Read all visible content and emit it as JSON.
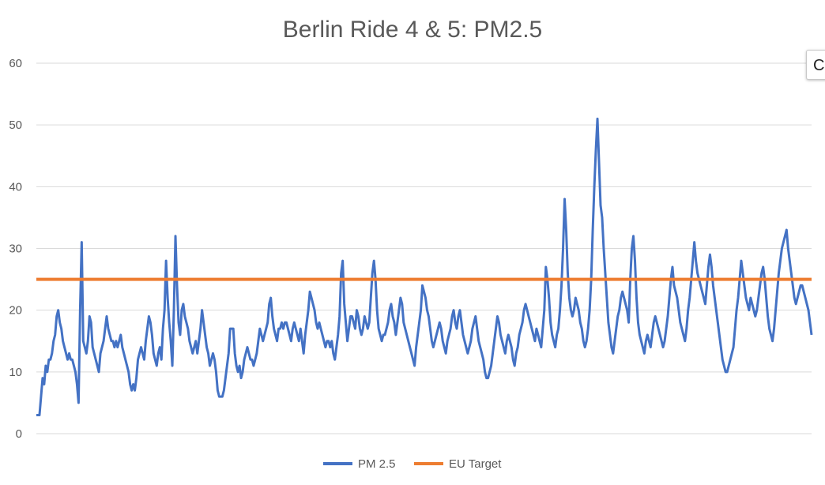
{
  "chart_data": {
    "type": "line",
    "title": "Berlin Ride 4 & 5: PM2.5",
    "ylim": [
      0,
      60
    ],
    "yticks": [
      "0",
      "10",
      "20",
      "30",
      "40",
      "50",
      "60"
    ],
    "grid": true,
    "legend_position": "bottom",
    "series": [
      {
        "name": "PM 2.5",
        "color": "#4472C4",
        "values": [
          3,
          3,
          3,
          6,
          9,
          8,
          11,
          10,
          12,
          12,
          13,
          15,
          16,
          19,
          20,
          18,
          17,
          15,
          14,
          13,
          12,
          13,
          12,
          12,
          11,
          10,
          8,
          5,
          20,
          31,
          15,
          14,
          13,
          15,
          19,
          18,
          14,
          13,
          12,
          11,
          10,
          13,
          14,
          15,
          17,
          19,
          17,
          16,
          15,
          15,
          14,
          15,
          14,
          15,
          16,
          14,
          13,
          12,
          11,
          10,
          8,
          7,
          8,
          7,
          9,
          12,
          13,
          14,
          13,
          12,
          15,
          17,
          19,
          18,
          16,
          13,
          12,
          11,
          13,
          14,
          12,
          17,
          20,
          28,
          22,
          18,
          15,
          11,
          20,
          32,
          24,
          18,
          16,
          20,
          21,
          19,
          18,
          17,
          15,
          14,
          13,
          14,
          15,
          13,
          15,
          17,
          20,
          18,
          16,
          14,
          13,
          11,
          12,
          13,
          12,
          10,
          7,
          6,
          6,
          6,
          7,
          9,
          11,
          13,
          17,
          17,
          17,
          13,
          11,
          10,
          11,
          9,
          10,
          12,
          13,
          14,
          13,
          12,
          12,
          11,
          12,
          13,
          15,
          17,
          16,
          15,
          16,
          17,
          18,
          21,
          22,
          19,
          17,
          16,
          15,
          17,
          17,
          18,
          17,
          18,
          18,
          17,
          16,
          15,
          17,
          18,
          17,
          16,
          15,
          17,
          15,
          13,
          16,
          18,
          20,
          23,
          22,
          21,
          20,
          18,
          17,
          18,
          17,
          16,
          15,
          14,
          15,
          15,
          14,
          15,
          13,
          12,
          14,
          16,
          19,
          26,
          28,
          21,
          18,
          15,
          17,
          19,
          19,
          18,
          17,
          20,
          19,
          17,
          16,
          17,
          19,
          18,
          17,
          18,
          22,
          26,
          28,
          25,
          20,
          17,
          16,
          15,
          16,
          16,
          17,
          18,
          20,
          21,
          19,
          18,
          16,
          18,
          20,
          22,
          21,
          18,
          17,
          16,
          15,
          14,
          13,
          12,
          11,
          14,
          16,
          18,
          20,
          24,
          23,
          22,
          20,
          19,
          17,
          15,
          14,
          15,
          16,
          17,
          18,
          17,
          15,
          14,
          13,
          15,
          16,
          17,
          19,
          20,
          18,
          17,
          19,
          20,
          18,
          16,
          15,
          14,
          13,
          14,
          15,
          17,
          18,
          19,
          17,
          15,
          14,
          13,
          12,
          10,
          9,
          9,
          10,
          11,
          13,
          15,
          17,
          19,
          18,
          16,
          15,
          14,
          13,
          15,
          16,
          15,
          14,
          12,
          11,
          13,
          14,
          16,
          17,
          18,
          20,
          21,
          20,
          19,
          18,
          17,
          16,
          15,
          17,
          16,
          15,
          14,
          17,
          20,
          27,
          25,
          22,
          18,
          16,
          15,
          14,
          16,
          17,
          20,
          24,
          30,
          38,
          33,
          26,
          22,
          20,
          19,
          20,
          22,
          21,
          20,
          18,
          17,
          15,
          14,
          15,
          17,
          20,
          25,
          33,
          40,
          46,
          51,
          44,
          37,
          35,
          30,
          26,
          22,
          18,
          16,
          14,
          13,
          15,
          17,
          19,
          20,
          22,
          23,
          22,
          21,
          20,
          18,
          25,
          30,
          32,
          28,
          22,
          18,
          16,
          15,
          14,
          13,
          15,
          16,
          15,
          14,
          16,
          18,
          19,
          18,
          17,
          16,
          15,
          14,
          15,
          17,
          19,
          22,
          25,
          27,
          24,
          23,
          22,
          20,
          18,
          17,
          16,
          15,
          17,
          20,
          22,
          25,
          28,
          31,
          28,
          26,
          25,
          24,
          23,
          22,
          21,
          24,
          27,
          29,
          27,
          24,
          22,
          20,
          18,
          16,
          14,
          12,
          11,
          10,
          10,
          11,
          12,
          13,
          14,
          17,
          20,
          22,
          25,
          28,
          26,
          24,
          22,
          21,
          20,
          22,
          21,
          20,
          19,
          20,
          22,
          24,
          26,
          27,
          25,
          22,
          19,
          17,
          16,
          15,
          17,
          20,
          23,
          26,
          28,
          30,
          31,
          32,
          33,
          30,
          28,
          26,
          24,
          22,
          21,
          22,
          23,
          24,
          24,
          23,
          22,
          21,
          20,
          18,
          16
        ]
      },
      {
        "name": "EU Target",
        "color": "#ED7D31",
        "values": [
          25,
          25
        ]
      }
    ]
  },
  "ui": {
    "side_button_label": "C"
  }
}
